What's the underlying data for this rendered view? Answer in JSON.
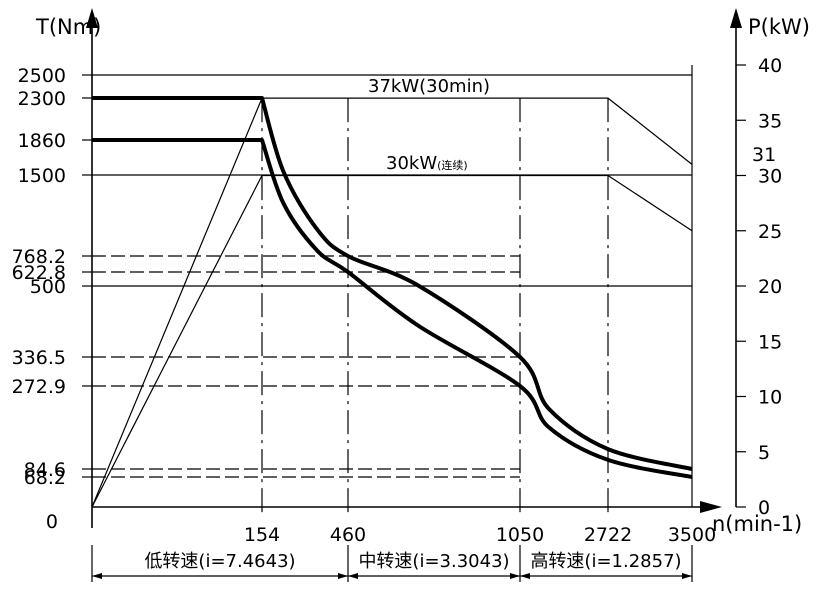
{
  "chart_data": {
    "type": "line",
    "y_left_label": "T(Nm)",
    "y_right_label": "P(kW)",
    "x_label": "n(min-1)",
    "x_ticks": [
      {
        "label": "0",
        "value": 0
      },
      {
        "label": "154",
        "value": 154
      },
      {
        "label": "460",
        "value": 460
      },
      {
        "label": "1050",
        "value": 1050
      },
      {
        "label": "2722",
        "value": 2722
      },
      {
        "label": "3500",
        "value": 3500
      }
    ],
    "y_left_ticks": [
      {
        "label": "2500",
        "value": 2500,
        "style": "solid"
      },
      {
        "label": "2300",
        "value": 2300,
        "style": "none"
      },
      {
        "label": "1860",
        "value": 1860,
        "style": "none"
      },
      {
        "label": "1500",
        "value": 1500,
        "style": "solid"
      },
      {
        "label": "768.2",
        "value": 768.2,
        "style": "dashed"
      },
      {
        "label": "622.8",
        "value": 622.8,
        "style": "dashed"
      },
      {
        "label": "500",
        "value": 500,
        "style": "solid"
      },
      {
        "label": "336.5",
        "value": 336.5,
        "style": "dashed"
      },
      {
        "label": "272.9",
        "value": 272.9,
        "style": "dashed"
      },
      {
        "label": "84.6",
        "value": 84.6,
        "style": "dashed"
      },
      {
        "label": "68.2",
        "value": 68.2,
        "style": "dashed"
      }
    ],
    "y_right_ticks": [
      "0",
      "5",
      "10",
      "15",
      "20",
      "25",
      "30",
      "35",
      "40"
    ],
    "y_right_extra_label": "31",
    "power_lines": [
      {
        "label": "37kW(30min)",
        "kw": 37
      },
      {
        "label": "30kW",
        "suffix": "(连续)",
        "kw": 30
      }
    ],
    "torque_curves": [
      {
        "name": "37kW (30min)",
        "points": [
          [
            0,
            2300
          ],
          [
            154,
            2300
          ],
          [
            230,
            1536
          ],
          [
            350,
            1009
          ],
          [
            460,
            768.2
          ],
          [
            700,
            505
          ],
          [
            1050,
            336.5
          ],
          [
            1600,
            221
          ],
          [
            2722,
            129.8
          ],
          [
            3500,
            84.6
          ]
        ]
      },
      {
        "name": "30kW (continuous)",
        "points": [
          [
            0,
            1860
          ],
          [
            154,
            1860
          ],
          [
            230,
            1245
          ],
          [
            350,
            818
          ],
          [
            460,
            622.8
          ],
          [
            700,
            409
          ],
          [
            1050,
            272.9
          ],
          [
            1600,
            179
          ],
          [
            2722,
            105.2
          ],
          [
            3500,
            68.2
          ]
        ]
      }
    ],
    "power_curves": [
      {
        "name": "37kW (30min)",
        "points": [
          [
            0,
            0
          ],
          [
            154,
            37
          ],
          [
            2722,
            37
          ],
          [
            3500,
            31
          ]
        ]
      },
      {
        "name": "30kW (continuous)",
        "points": [
          [
            0,
            0
          ],
          [
            154,
            30
          ],
          [
            2722,
            30
          ],
          [
            3500,
            25
          ]
        ]
      }
    ],
    "gear_ranges": [
      {
        "label": "低转速(i=7.4643)",
        "from": 0,
        "to": 460
      },
      {
        "label": "中转速(i=3.3043)",
        "from": 460,
        "to": 1050
      },
      {
        "label": "高转速(i=1.2857)",
        "from": 1050,
        "to": 3500
      }
    ]
  }
}
